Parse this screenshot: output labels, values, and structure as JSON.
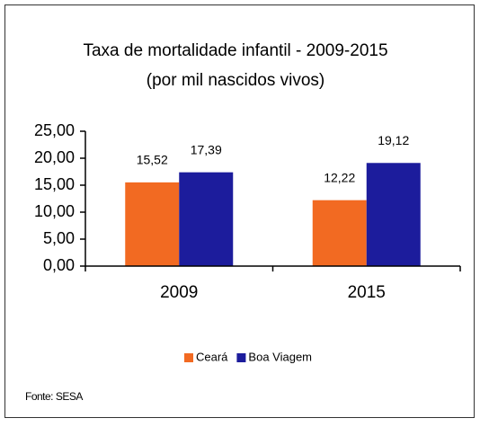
{
  "chart_data": {
    "type": "bar",
    "title": "Taxa de mortalidade infantil - 2009-2015",
    "subtitle": "(por mil nascidos vivos)",
    "categories": [
      "2009",
      "2015"
    ],
    "series": [
      {
        "name": "Ceará",
        "color": "#f26a22",
        "values": [
          15.52,
          12.22
        ],
        "value_labels": [
          "15,52",
          "12,22"
        ]
      },
      {
        "name": "Boa Viagem",
        "color": "#1c1c9c",
        "values": [
          17.39,
          19.12
        ],
        "value_labels": [
          "17,39",
          "19,12"
        ]
      }
    ],
    "ylim": [
      0,
      25
    ],
    "yticks": [
      {
        "value": 0,
        "label": "0,00"
      },
      {
        "value": 5,
        "label": "5,00"
      },
      {
        "value": 10,
        "label": "10,00"
      },
      {
        "value": 15,
        "label": "15,00"
      },
      {
        "value": 20,
        "label": "20,00"
      },
      {
        "value": 25,
        "label": "25,00"
      }
    ],
    "grid": false,
    "legend": "bottom",
    "source": "Fonte: SESA"
  }
}
